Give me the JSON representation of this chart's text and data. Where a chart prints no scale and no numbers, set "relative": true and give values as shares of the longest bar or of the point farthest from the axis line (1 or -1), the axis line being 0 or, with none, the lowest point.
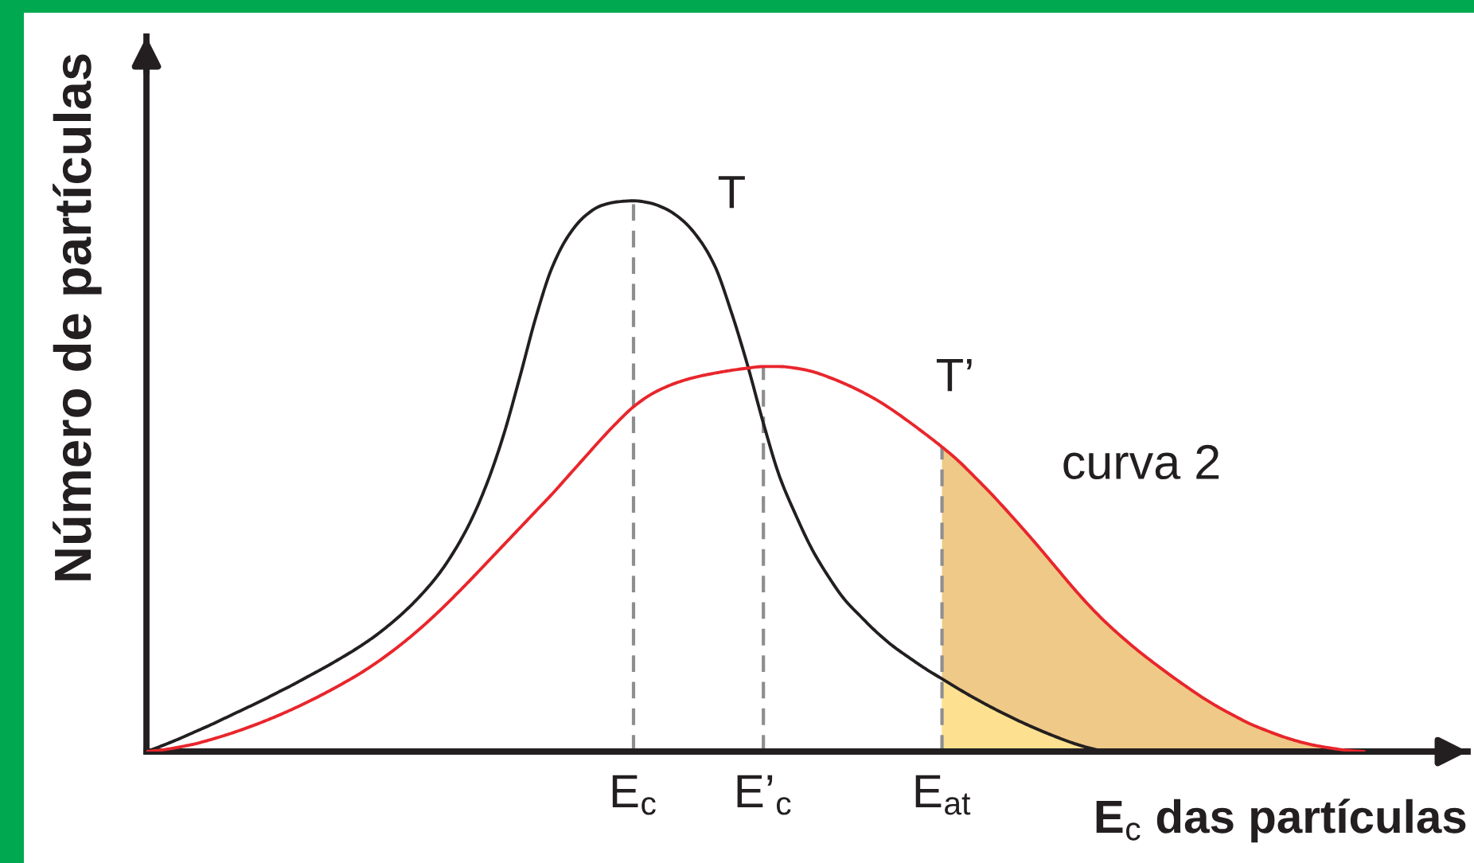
{
  "chart_data": {
    "type": "line",
    "relative": true,
    "xlabel": "E$_{c}$ das partículas",
    "ylabel": "Número de partículas",
    "categories": [
      null,
      null,
      null,
      null,
      null,
      null,
      null,
      null,
      null,
      null,
      null,
      null,
      null,
      null,
      null,
      null,
      null,
      null,
      null,
      null,
      null,
      null,
      null,
      null,
      null,
      null,
      null,
      null,
      null,
      null,
      "E$_{c}$",
      null,
      null,
      null,
      null,
      null,
      null,
      null,
      "E’$_{c}$",
      null,
      null,
      null,
      null,
      null,
      null,
      null,
      null,
      null,
      null,
      "E$_{at}$",
      null,
      null,
      null,
      null,
      null,
      null,
      null,
      null,
      null,
      null,
      null,
      null,
      null,
      null,
      null,
      null,
      null,
      null,
      null,
      null,
      null,
      null,
      null,
      null,
      null,
      null
    ],
    "series": [
      {
        "type": "area",
        "color": "#efc987",
        "values": [
          null,
          null,
          null,
          null,
          null,
          null,
          null,
          null,
          null,
          null,
          null,
          null,
          null,
          null,
          null,
          null,
          null,
          null,
          null,
          null,
          null,
          null,
          null,
          null,
          null,
          null,
          null,
          null,
          null,
          null,
          null,
          null,
          null,
          null,
          null,
          null,
          null,
          null,
          null,
          null,
          null,
          null,
          null,
          null,
          null,
          null,
          null,
          null,
          null,
          0.553,
          0.528,
          0.499,
          0.469,
          0.437,
          0.404,
          0.37,
          0.335,
          0.3,
          0.267,
          0.237,
          0.21,
          0.185,
          0.162,
          0.14,
          0.119,
          0.099,
          0.081,
          0.065,
          0.05,
          0.038,
          0.027,
          0.018,
          0.011,
          0.006,
          0.002,
          0
        ]
      },
      {
        "type": "area",
        "color": "#fee190",
        "values": [
          null,
          null,
          null,
          null,
          null,
          null,
          null,
          null,
          null,
          null,
          null,
          null,
          null,
          null,
          null,
          null,
          null,
          null,
          null,
          null,
          null,
          null,
          null,
          null,
          null,
          null,
          null,
          null,
          null,
          null,
          null,
          null,
          null,
          null,
          null,
          null,
          null,
          null,
          null,
          null,
          null,
          null,
          null,
          null,
          null,
          null,
          null,
          null,
          null,
          0.132,
          0.114,
          0.097,
          0.081,
          0.066,
          0.052,
          0.039,
          0.027,
          0.016,
          0.007,
          0,
          null,
          null,
          null,
          null,
          null,
          null,
          null,
          null,
          null,
          null,
          null,
          null,
          null,
          null,
          null,
          null
        ]
      },
      {
        "name": "T",
        "color": "#231f20",
        "values": [
          0,
          0.011,
          0.023,
          0.036,
          0.049,
          0.063,
          0.077,
          0.091,
          0.106,
          0.121,
          0.137,
          0.153,
          0.17,
          0.188,
          0.208,
          0.231,
          0.257,
          0.287,
          0.322,
          0.366,
          0.42,
          0.489,
          0.575,
          0.68,
          0.79,
          0.88,
          0.937,
          0.972,
          0.991,
          0.998,
          1.0,
          0.996,
          0.985,
          0.965,
          0.932,
          0.882,
          0.8,
          0.704,
          0.596,
          0.499,
          0.429,
          0.367,
          0.318,
          0.276,
          0.245,
          0.216,
          0.191,
          0.17,
          0.15,
          0.132,
          0.114,
          0.097,
          0.081,
          0.066,
          0.052,
          0.039,
          0.027,
          0.016,
          0.007,
          0,
          null,
          null,
          null,
          null,
          null,
          null,
          null,
          null,
          null,
          null,
          null,
          null,
          null,
          null,
          null,
          null
        ]
      },
      {
        "name": "T’",
        "color": "#e8262c",
        "values": [
          0,
          0.003,
          0.008,
          0.014,
          0.022,
          0.031,
          0.041,
          0.052,
          0.064,
          0.077,
          0.091,
          0.106,
          0.122,
          0.139,
          0.158,
          0.179,
          0.202,
          0.227,
          0.254,
          0.283,
          0.313,
          0.344,
          0.375,
          0.406,
          0.437,
          0.468,
          0.501,
          0.534,
          0.567,
          0.598,
          0.626,
          0.647,
          0.662,
          0.673,
          0.681,
          0.687,
          0.692,
          0.696,
          0.699,
          0.699,
          0.696,
          0.69,
          0.68,
          0.668,
          0.654,
          0.638,
          0.619,
          0.598,
          0.576,
          0.553,
          0.528,
          0.499,
          0.469,
          0.437,
          0.404,
          0.37,
          0.335,
          0.3,
          0.267,
          0.237,
          0.21,
          0.185,
          0.162,
          0.14,
          0.119,
          0.099,
          0.081,
          0.065,
          0.05,
          0.038,
          0.027,
          0.018,
          0.011,
          0.006,
          0.002,
          0
        ]
      }
    ],
    "ref_lines": [
      {
        "axis": "x",
        "value": "E$_{c}$",
        "color": "#8e8e8e",
        "line_style": "dashed"
      },
      {
        "axis": "x",
        "value": "E’$_{c}$",
        "color": "#8e8e8e",
        "line_style": "dashed"
      },
      {
        "axis": "x",
        "value": "E$_{at}$",
        "color": "#8e8e8e",
        "line_style": "dashed"
      }
    ],
    "annotations": [
      "curva 2"
    ],
    "marker": "none",
    "line_style": "solid",
    "grid": false,
    "legend": false
  }
}
